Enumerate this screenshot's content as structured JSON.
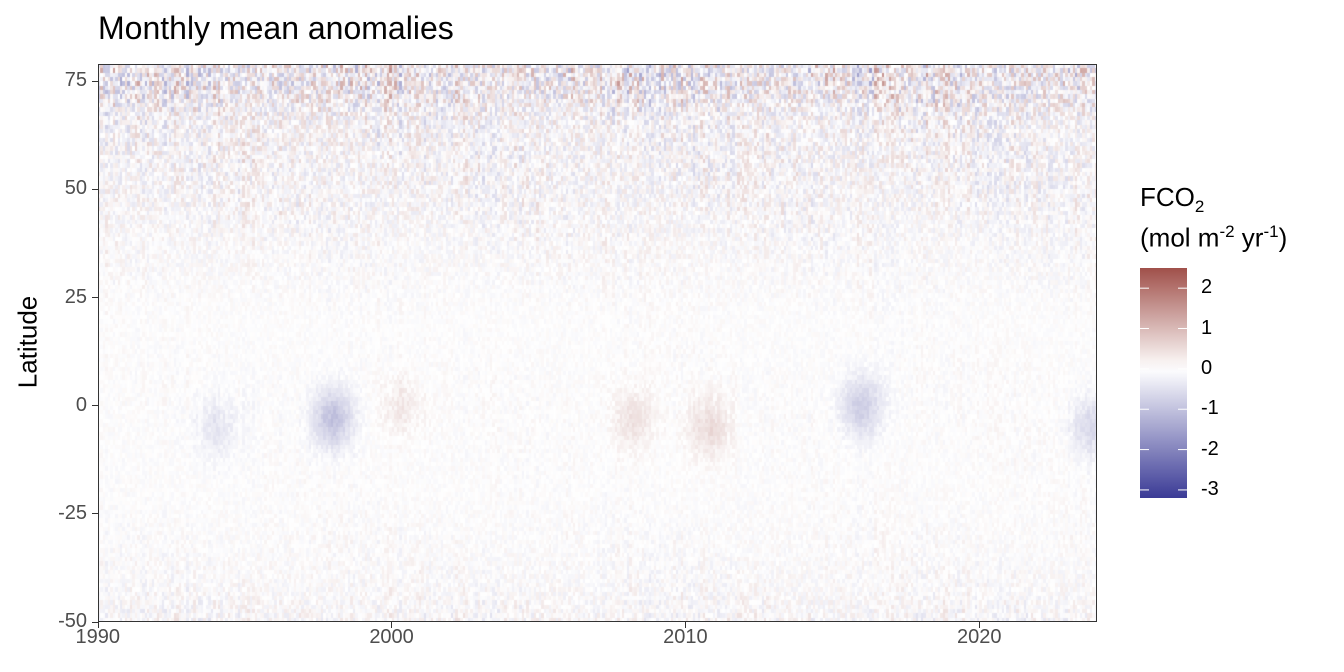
{
  "chart_data": {
    "type": "heatmap",
    "title": "Monthly mean anomalies",
    "xlabel": "",
    "ylabel": "Latitude",
    "x_range": [
      1990,
      2024
    ],
    "x_ticks": [
      1990,
      2000,
      2010,
      2020
    ],
    "x_tick_labels": [
      "1990",
      "2000",
      "2010",
      "2020"
    ],
    "y_range": [
      -50,
      79
    ],
    "y_ticks": [
      -50,
      -25,
      0,
      25,
      50,
      75
    ],
    "y_tick_labels": [
      "-50",
      "-25",
      "0",
      "25",
      "50",
      "75"
    ],
    "grid": false,
    "legend": {
      "title_line1_main": "FCO",
      "title_line1_sub": "2",
      "title_line2_a": "(mol m",
      "title_line2_sup1": "-2",
      "title_line2_b": " yr",
      "title_line2_sup2": "-1",
      "title_line2_c": ")",
      "placement": "right",
      "range": [
        -3.2,
        2.5
      ],
      "ticks": [
        2,
        1,
        0,
        -1,
        -2,
        -3
      ],
      "tick_labels": [
        "2",
        "1",
        "0",
        "-1",
        "-2",
        "-3"
      ],
      "color_low": "#3b3b96",
      "color_mid": "#ffffff",
      "color_high": "#a0504a"
    },
    "notable_anomalies": [
      {
        "year": 1998,
        "lat": -3,
        "value": -1.0
      },
      {
        "year": 2016,
        "lat": 0,
        "value": -0.8
      },
      {
        "year": 1994,
        "lat": -5,
        "value": -0.4
      },
      {
        "year": 2023.8,
        "lat": -5,
        "value": -0.6
      },
      {
        "year": 2010.8,
        "lat": -5,
        "value": 0.5
      },
      {
        "year": 2008.2,
        "lat": -3,
        "value": 0.4
      },
      {
        "year": 2000.3,
        "lat": 0,
        "value": 0.3
      }
    ],
    "variability_by_latitude": [
      {
        "lat": 75,
        "amplitude": 1.8
      },
      {
        "lat": 65,
        "amplitude": 1.0
      },
      {
        "lat": 50,
        "amplitude": 0.8
      },
      {
        "lat": 35,
        "amplitude": 0.45
      },
      {
        "lat": 20,
        "amplitude": 0.2
      },
      {
        "lat": 0,
        "amplitude": 0.25
      },
      {
        "lat": -20,
        "amplitude": 0.22
      },
      {
        "lat": -35,
        "amplitude": 0.35
      },
      {
        "lat": -45,
        "amplitude": 0.5
      },
      {
        "lat": -50,
        "amplitude": 0.7
      }
    ]
  }
}
